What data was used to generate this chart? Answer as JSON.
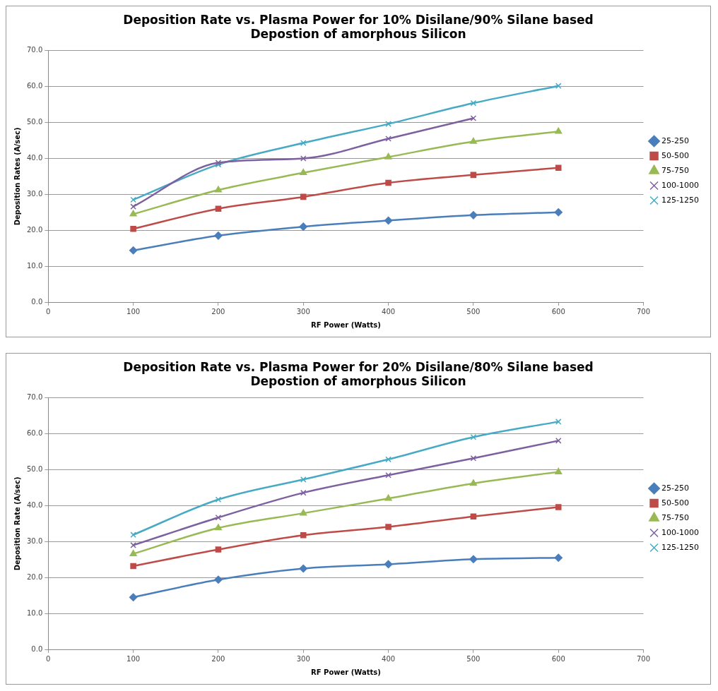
{
  "chart_data": [
    {
      "type": "line",
      "title": "Deposition Rate vs. Plasma Power for 10% Disilane/90% Silane based\nDepostion of amorphous Silicon",
      "xlabel": "RF Power (Watts)",
      "ylabel": "Deposition Rates (A/sec)",
      "x": [
        100,
        200,
        300,
        400,
        500,
        600
      ],
      "xlim": [
        0,
        700
      ],
      "xticks": [
        0,
        100,
        200,
        300,
        400,
        500,
        600,
        700
      ],
      "ylim": [
        0,
        70
      ],
      "yticks": [
        {
          "value": 0,
          "label": "0.0"
        },
        {
          "value": 10,
          "label": "10.0"
        },
        {
          "value": 20,
          "label": "20.0"
        },
        {
          "value": 30,
          "label": "30.0"
        },
        {
          "value": 40,
          "label": "40.0"
        },
        {
          "value": 50,
          "label": "50.0"
        },
        {
          "value": 60,
          "label": "60.0"
        },
        {
          "value": 70,
          "label": "70.0"
        }
      ],
      "grid": "y",
      "legend": "right",
      "series": [
        {
          "name": "25-250",
          "color": "#4a7ebb",
          "marker": "diamond",
          "values": [
            14.4,
            18.5,
            21.0,
            22.7,
            24.2,
            25.0
          ]
        },
        {
          "name": "50-500",
          "color": "#be4b48",
          "marker": "square",
          "values": [
            20.4,
            26.0,
            29.3,
            33.2,
            35.4,
            37.4
          ]
        },
        {
          "name": "75-750",
          "color": "#98b954",
          "marker": "triangle",
          "values": [
            24.5,
            31.2,
            36.0,
            40.4,
            44.7,
            47.5
          ]
        },
        {
          "name": "100-1000",
          "color": "#7d60a0",
          "marker": "cross",
          "values": [
            26.6,
            38.8,
            40.0,
            45.5,
            51.2,
            null
          ]
        },
        {
          "name": "125-1250",
          "color": "#46aac5",
          "marker": "cross",
          "values": [
            28.5,
            38.3,
            44.3,
            49.6,
            55.4,
            60.2
          ]
        }
      ]
    },
    {
      "type": "line",
      "title": "Deposition Rate vs. Plasma Power for 20% Disilane/80% Silane based\nDepostion of amorphous Silicon",
      "xlabel": "RF Power (Watts)",
      "ylabel": "Deposition Rate (A/sec)",
      "x": [
        100,
        200,
        300,
        400,
        500,
        600
      ],
      "xlim": [
        0,
        700
      ],
      "xticks": [
        0,
        100,
        200,
        300,
        400,
        500,
        600,
        700
      ],
      "ylim": [
        0,
        70
      ],
      "yticks": [
        {
          "value": 0,
          "label": "0.0"
        },
        {
          "value": 10,
          "label": "10.0"
        },
        {
          "value": 20,
          "label": "20.0"
        },
        {
          "value": 30,
          "label": "30.0"
        },
        {
          "value": 40,
          "label": "40.0"
        },
        {
          "value": 50,
          "label": "50.0"
        },
        {
          "value": 60,
          "label": "60.0"
        },
        {
          "value": 70,
          "label": "70.0"
        }
      ],
      "grid": "y",
      "legend": "right",
      "series": [
        {
          "name": "25-250",
          "color": "#4a7ebb",
          "marker": "diamond",
          "values": [
            14.5,
            19.4,
            22.5,
            23.7,
            25.1,
            25.5
          ]
        },
        {
          "name": "50-500",
          "color": "#be4b48",
          "marker": "square",
          "values": [
            23.2,
            27.8,
            31.8,
            34.1,
            37.0,
            39.6
          ]
        },
        {
          "name": "75-750",
          "color": "#98b954",
          "marker": "triangle",
          "values": [
            26.6,
            33.8,
            37.9,
            42.0,
            46.2,
            49.4
          ]
        },
        {
          "name": "100-1000",
          "color": "#7d60a0",
          "marker": "cross",
          "values": [
            29.0,
            36.7,
            43.6,
            48.5,
            53.2,
            58.1
          ]
        },
        {
          "name": "125-1250",
          "color": "#46aac5",
          "marker": "cross",
          "values": [
            31.9,
            41.7,
            47.3,
            52.9,
            59.1,
            63.4
          ]
        }
      ]
    }
  ]
}
